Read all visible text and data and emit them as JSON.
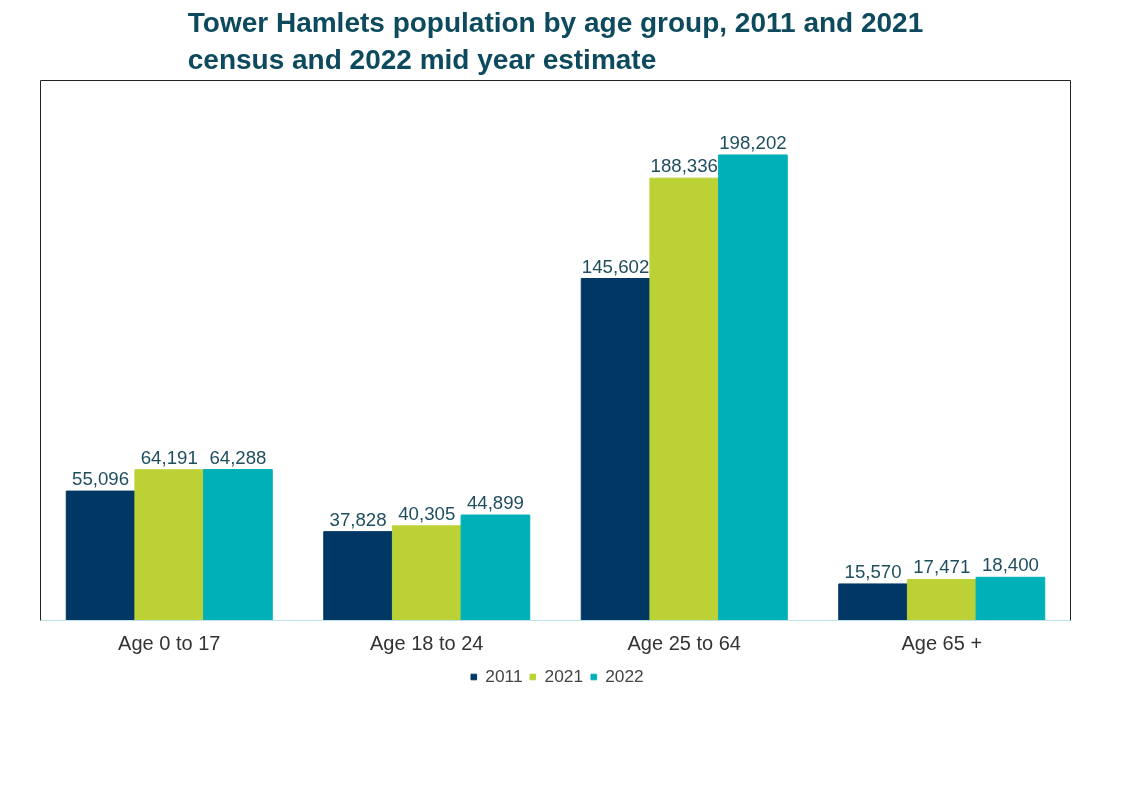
{
  "chart_data": {
    "type": "bar",
    "title": "Tower Hamlets population by age group, 2011 and 2021\ncensus and 2022 mid year estimate",
    "categories": [
      "Age 0 to 17",
      "Age 18 to 24",
      "Age 25 to 64",
      "Age 65 +"
    ],
    "series": [
      {
        "name": "2011",
        "color": "#003764",
        "values": [
          55096,
          37828,
          145602,
          15570
        ],
        "value_labels": [
          "55,096",
          "37,828",
          "145,602",
          "15,570"
        ]
      },
      {
        "name": "2021",
        "color": "#bcd135",
        "values": [
          64191,
          40305,
          188336,
          17471
        ],
        "value_labels": [
          "64,191",
          "40,305",
          "188,336",
          "17,471"
        ]
      },
      {
        "name": "2022",
        "color": "#00b0b9",
        "values": [
          64288,
          44899,
          198202,
          18400
        ],
        "value_labels": [
          "64,288",
          "44,899",
          "198,202",
          "18,400"
        ]
      }
    ],
    "grid": false,
    "legend": "bottom"
  }
}
